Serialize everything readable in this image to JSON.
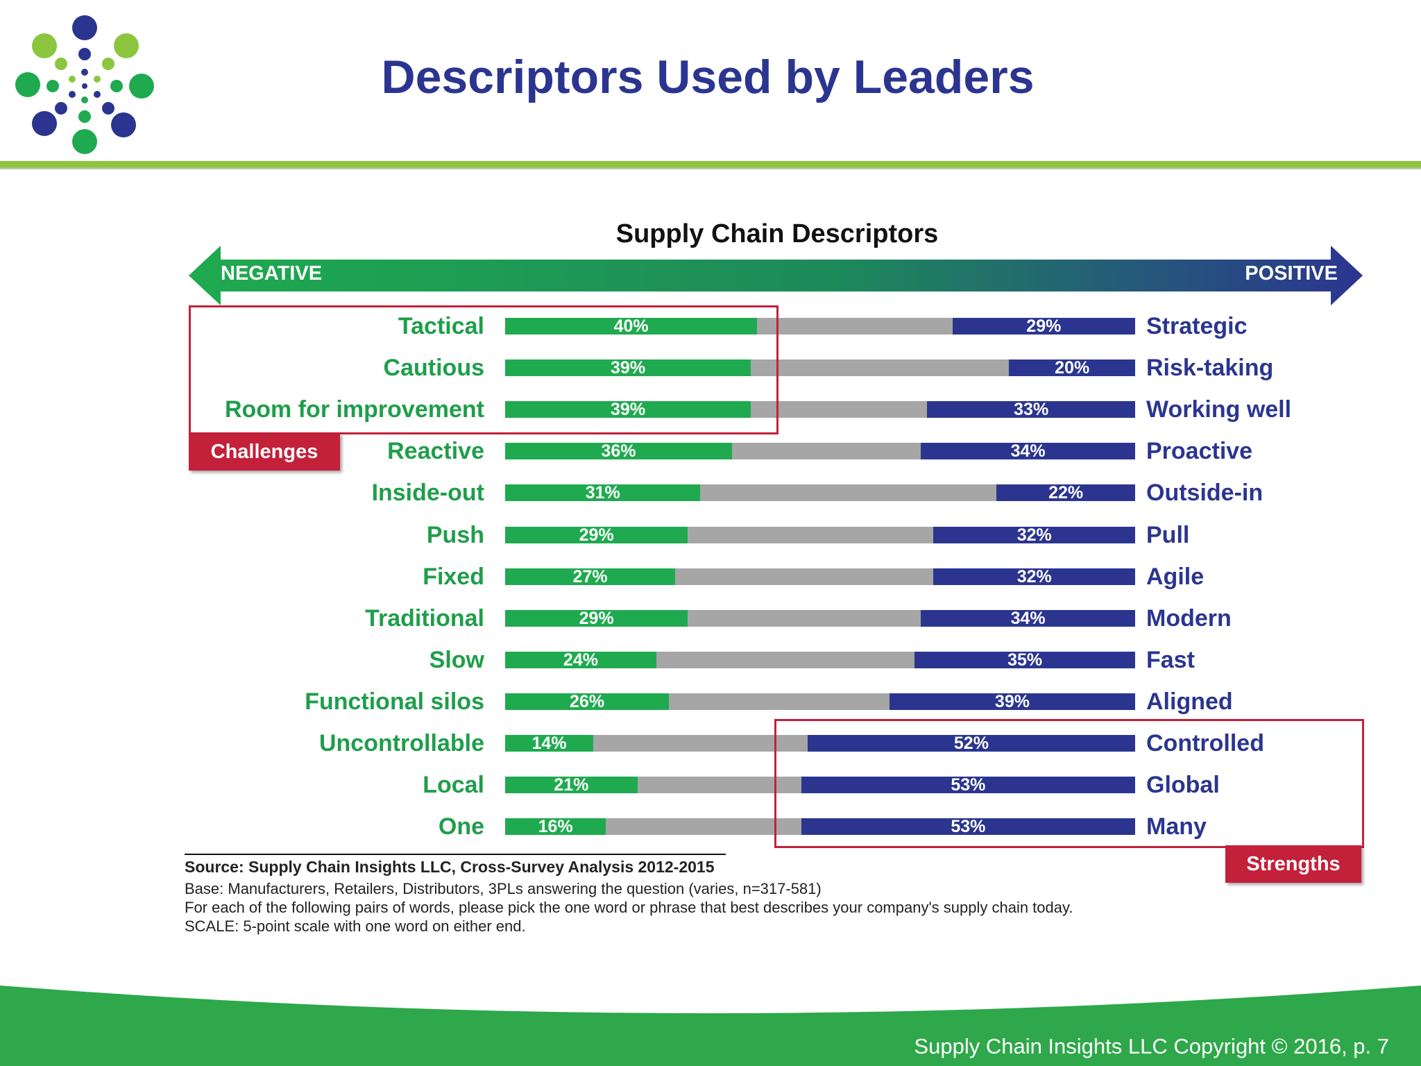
{
  "slide": {
    "title": "Descriptors Used by Leaders",
    "footer": "Supply Chain Insights LLC Copyright © 2016, p. 7"
  },
  "colors": {
    "title_blue": "#2b3590",
    "negative_green": "#1faa4f",
    "positive_blue": "#2b3590",
    "neutral_gray": "#a6a6a6",
    "callout_red": "#c3203a",
    "header_rule_green": "#8cc63f"
  },
  "chart_data": {
    "type": "bar",
    "title": "Supply Chain Descriptors",
    "scale_left_label": "NEGATIVE",
    "scale_right_label": "POSITIVE",
    "rows": [
      {
        "negative": "Tactical",
        "negative_pct": 40,
        "negative_label": "40%",
        "positive": "Strategic",
        "positive_pct": 29,
        "positive_label": "29%"
      },
      {
        "negative": "Cautious",
        "negative_pct": 39,
        "negative_label": "39%",
        "positive": "Risk-taking",
        "positive_pct": 20,
        "positive_label": "20%"
      },
      {
        "negative": "Room for improvement",
        "negative_pct": 39,
        "negative_label": "39%",
        "positive": "Working well",
        "positive_pct": 33,
        "positive_label": "33%"
      },
      {
        "negative": "Reactive",
        "negative_pct": 36,
        "negative_label": "36%",
        "positive": "Proactive",
        "positive_pct": 34,
        "positive_label": "34%"
      },
      {
        "negative": "Inside-out",
        "negative_pct": 31,
        "negative_label": "31%",
        "positive": "Outside-in",
        "positive_pct": 22,
        "positive_label": "22%"
      },
      {
        "negative": "Push",
        "negative_pct": 29,
        "negative_label": "29%",
        "positive": "Pull",
        "positive_pct": 32,
        "positive_label": "32%"
      },
      {
        "negative": "Fixed",
        "negative_pct": 27,
        "negative_label": "27%",
        "positive": "Agile",
        "positive_pct": 32,
        "positive_label": "32%"
      },
      {
        "negative": "Traditional",
        "negative_pct": 29,
        "negative_label": "29%",
        "positive": "Modern",
        "positive_pct": 34,
        "positive_label": "34%"
      },
      {
        "negative": "Slow",
        "negative_pct": 24,
        "negative_label": "24%",
        "positive": "Fast",
        "positive_pct": 35,
        "positive_label": "35%"
      },
      {
        "negative": "Functional silos",
        "negative_pct": 26,
        "negative_label": "26%",
        "positive": "Aligned",
        "positive_pct": 39,
        "positive_label": "39%"
      },
      {
        "negative": "Uncontrollable",
        "negative_pct": 14,
        "negative_label": "14%",
        "positive": "Controlled",
        "positive_pct": 52,
        "positive_label": "52%"
      },
      {
        "negative": "Local",
        "negative_pct": 21,
        "negative_label": "21%",
        "positive": "Global",
        "positive_pct": 53,
        "positive_label": "53%"
      },
      {
        "negative": "One",
        "negative_pct": 16,
        "negative_label": "16%",
        "positive": "Many",
        "positive_pct": 53,
        "positive_label": "53%"
      }
    ],
    "callouts": {
      "challenges": "Challenges",
      "strengths": "Strengths"
    }
  },
  "notes": {
    "source": "Source:  Supply Chain Insights LLC, Cross-Survey Analysis 2012-2015",
    "base": "Base:  Manufacturers, Retailers, Distributors, 3PLs answering the question (varies,  n=317-581)",
    "question": "For each of the following pairs of words, please pick the one word or phrase that best describes your company's supply chain today.",
    "scale": "SCALE: 5-point scale with  one word on either end."
  }
}
